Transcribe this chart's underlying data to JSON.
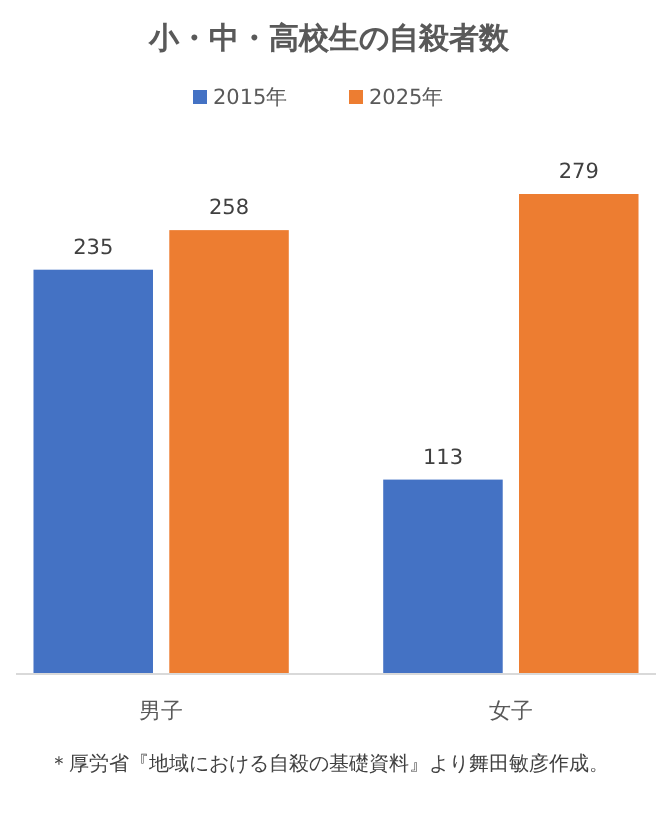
{
  "chart_data": {
    "type": "bar",
    "title": "小・中・高校生の自殺者数",
    "categories": [
      "男子",
      "女子"
    ],
    "series": [
      {
        "name": "2015年",
        "color": "#4472c4",
        "values": [
          235,
          113
        ]
      },
      {
        "name": "2025年",
        "color": "#ed7d31",
        "values": [
          258,
          279
        ]
      }
    ],
    "data_labels": true,
    "legend": "top",
    "annotations": [
      "＊厚労省『地域における自殺の基礎資料』より舞田敏彦作成。"
    ]
  }
}
